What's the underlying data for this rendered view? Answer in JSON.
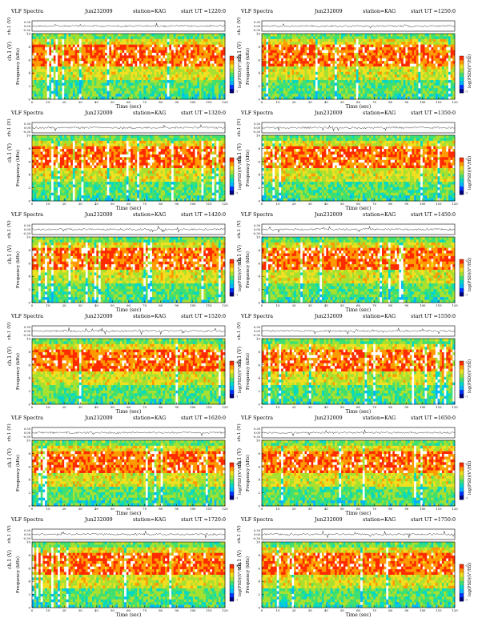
{
  "panels": [
    {
      "header": {
        "left": "VLF Spectra",
        "date": "Jun232009",
        "station": "station=KAG",
        "start": "start  UT  =1220:0"
      }
    },
    {
      "header": {
        "left": "VLF Spectra",
        "date": "Jun232009",
        "station": "station=KAG",
        "start": "start  UT  =1250:0"
      }
    },
    {
      "header": {
        "left": "VLF Spectra",
        "date": "Jun232009",
        "station": "station=KAG",
        "start": "start  UT  =1320:0"
      }
    },
    {
      "header": {
        "left": "VLF Spectra",
        "date": "Jun232009",
        "station": "station=KAG",
        "start": "start  UT  =1350:0"
      }
    },
    {
      "header": {
        "left": "VLF Spectra",
        "date": "Jun232009",
        "station": "station=KAG",
        "start": "start  UT  =1420:0"
      }
    },
    {
      "header": {
        "left": "VLF Spectra",
        "date": "Jun232009",
        "station": "station=KAG",
        "start": "start  UT  =1450:0"
      }
    },
    {
      "header": {
        "left": "VLF Spectra",
        "date": "Jun232009",
        "station": "station=KAG",
        "start": "start  UT  =1520:0"
      }
    },
    {
      "header": {
        "left": "VLF Spectra",
        "date": "Jun232009",
        "station": "station=KAG",
        "start": "start  UT  =1550:0"
      }
    },
    {
      "header": {
        "left": "VLF Spectra",
        "date": "Jun232009",
        "station": "station=KAG",
        "start": "start  UT  =1620:0"
      }
    },
    {
      "header": {
        "left": "VLF Spectra",
        "date": "Jun232009",
        "station": "station=KAG",
        "start": "start  UT  =1650:0"
      }
    },
    {
      "header": {
        "left": "VLF Spectra",
        "date": "Jun232009",
        "station": "station=KAG",
        "start": "start  UT  =1720:0"
      }
    },
    {
      "header": {
        "left": "VLF Spectra",
        "date": "Jun232009",
        "station": "station=KAG",
        "start": "start  UT  =1750:0"
      }
    }
  ],
  "chart_data": {
    "type": "heatmap",
    "description_shared": "Per-panel: waveform strip ch.1 (V) with y ticks 0.30/0.00/-0.30, spectrogram 0-10 kHz vs 0-120 s, colorbar log(PSD)",
    "waveform_ylabel": "ch.1 (V)",
    "waveform_yticks": [
      "0.30",
      "0.00",
      "-0.30"
    ],
    "waveform_ylim": [
      -0.3,
      0.3
    ],
    "spectrogram_ylabel": "Frequency  (kHz)",
    "spectrogram_yticks": [
      "0",
      "2",
      "4",
      "6",
      "8",
      "10"
    ],
    "spectrogram_ylim": [
      0,
      10
    ],
    "xlabel": "Time  (sec)",
    "xticks": [
      "0",
      "10",
      "20",
      "30",
      "40",
      "50",
      "60",
      "70",
      "80",
      "90",
      "100",
      "110",
      "120"
    ],
    "xlim": [
      0,
      120
    ],
    "colorbar_label": "log(PSD)(V²/Hz)",
    "colorbar_ticks": [
      "-5",
      "-7"
    ],
    "colormap": [
      "#000080",
      "#0033ff",
      "#00b4ff",
      "#00d8c8",
      "#40e070",
      "#a8e030",
      "#f0e020",
      "#ff9a00",
      "#ff2a00",
      "#ffffff"
    ]
  },
  "colors": {
    "frame": "#000000",
    "trace": "#333333",
    "background": "#ffffff"
  }
}
